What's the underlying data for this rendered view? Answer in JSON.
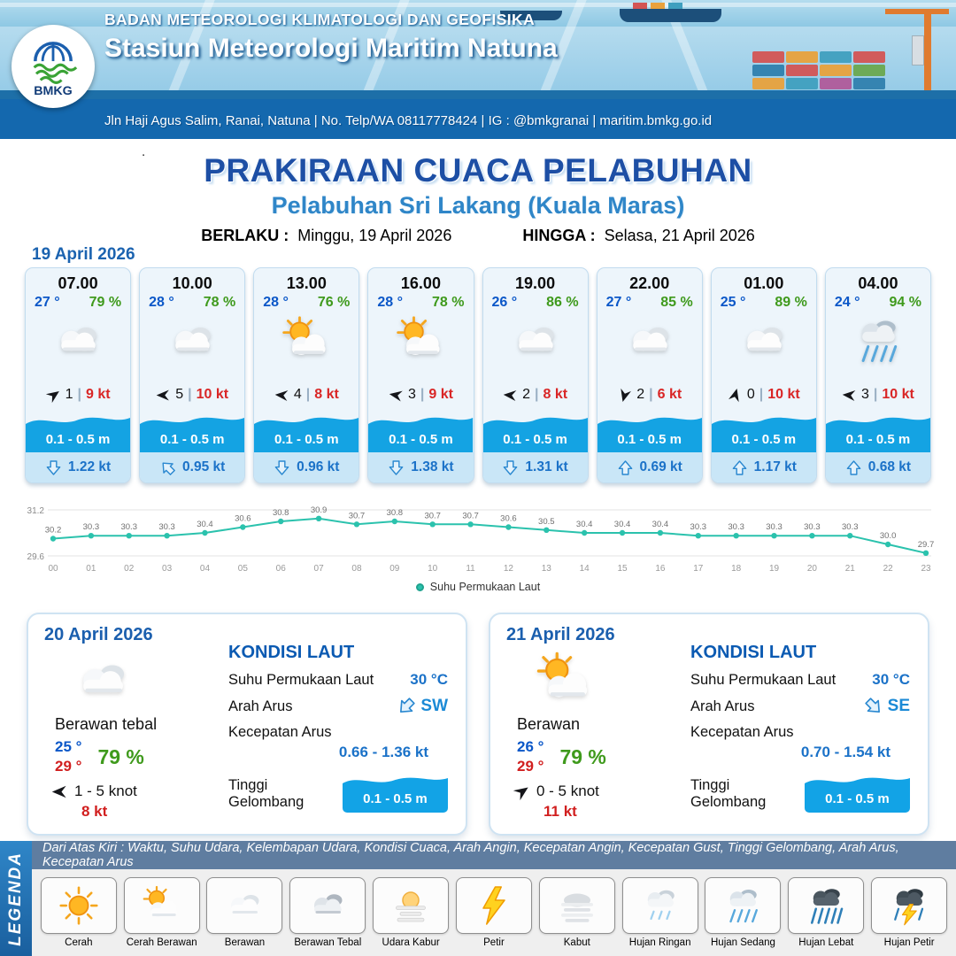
{
  "header": {
    "org": "BADAN METEOROLOGI KLIMATOLOGI DAN GEOFISIKA",
    "station": "Stasiun Meteorologi Maritim Natuna",
    "contact": "Jln Haji Agus Salim, Ranai, Natuna  | No. Telp/WA 08117778424 | IG : @bmkgranai | maritim.bmkg.go.id",
    "logo_label": "BMKG"
  },
  "title": {
    "main": "PRAKIRAAN CUACA PELABUHAN",
    "sub": "Pelabuhan Sri Lakang (Kuala Maras)",
    "valid_from_label": "BERLAKU :",
    "valid_from": "Minggu, 19 April 2026",
    "valid_to_label": "HINGGA :",
    "valid_to": "Selasa, 21 April 2026"
  },
  "misc": {
    "dot": "."
  },
  "forecast": {
    "date": "19 April 2026",
    "cards": [
      {
        "time": "07.00",
        "temp": "27 °",
        "rh": "79 %",
        "icon": "cloudy",
        "wind_dir_deg": -35,
        "wind_speed": "1",
        "gust": "9 kt",
        "wave": "0.1 - 0.5 m",
        "current_dir_deg": 180,
        "current_speed": "1.22 kt"
      },
      {
        "time": "10.00",
        "temp": "28 °",
        "rh": "78 %",
        "icon": "cloudy",
        "wind_dir_deg": 180,
        "wind_speed": "5",
        "gust": "10 kt",
        "wave": "0.1 - 0.5 m",
        "current_dir_deg": 315,
        "current_speed": "0.95 kt"
      },
      {
        "time": "13.00",
        "temp": "28 °",
        "rh": "76 %",
        "icon": "suncloud",
        "wind_dir_deg": 185,
        "wind_speed": "4",
        "gust": "8 kt",
        "wave": "0.1 - 0.5 m",
        "current_dir_deg": 180,
        "current_speed": "0.96 kt"
      },
      {
        "time": "16.00",
        "temp": "28 °",
        "rh": "78 %",
        "icon": "suncloud",
        "wind_dir_deg": 190,
        "wind_speed": "3",
        "gust": "9 kt",
        "wave": "0.1 - 0.5 m",
        "current_dir_deg": 180,
        "current_speed": "1.38 kt"
      },
      {
        "time": "19.00",
        "temp": "26 °",
        "rh": "86 %",
        "icon": "cloudy",
        "wind_dir_deg": 185,
        "wind_speed": "2",
        "gust": "8 kt",
        "wave": "0.1 - 0.5 m",
        "current_dir_deg": 180,
        "current_speed": "1.31 kt"
      },
      {
        "time": "22.00",
        "temp": "27 °",
        "rh": "85 %",
        "icon": "cloudy",
        "wind_dir_deg": 105,
        "wind_speed": "2",
        "gust": "6 kt",
        "wave": "0.1 - 0.5 m",
        "current_dir_deg": 0,
        "current_speed": "0.69 kt"
      },
      {
        "time": "01.00",
        "temp": "25 °",
        "rh": "89 %",
        "icon": "cloudy",
        "wind_dir_deg": -75,
        "wind_speed": "0",
        "gust": "10 kt",
        "wave": "0.1 - 0.5 m",
        "current_dir_deg": 0,
        "current_speed": "1.17 kt"
      },
      {
        "time": "04.00",
        "temp": "24 °",
        "rh": "94 %",
        "icon": "rain-mid",
        "wind_dir_deg": 185,
        "wind_speed": "3",
        "gust": "10 kt",
        "wave": "0.1 - 0.5 m",
        "current_dir_deg": 0,
        "current_speed": "0.68 kt"
      }
    ]
  },
  "chart_data": {
    "type": "line",
    "x": [
      "00",
      "01",
      "02",
      "03",
      "04",
      "05",
      "06",
      "07",
      "08",
      "09",
      "10",
      "11",
      "12",
      "13",
      "14",
      "15",
      "16",
      "17",
      "18",
      "19",
      "20",
      "21",
      "22",
      "23"
    ],
    "series": [
      {
        "name": "Suhu Permukaan Laut",
        "values": [
          30.2,
          30.3,
          30.3,
          30.3,
          30.4,
          30.6,
          30.8,
          30.9,
          30.7,
          30.8,
          30.7,
          30.7,
          30.6,
          30.5,
          30.4,
          30.4,
          30.4,
          30.3,
          30.3,
          30.3,
          30.3,
          30.3,
          30.0,
          29.7
        ]
      }
    ],
    "ylim": [
      29.6,
      31.2
    ],
    "yticks": [
      29.6,
      31.2
    ],
    "line_color": "#2bc2ad",
    "legend_position": "bottom",
    "grid": true
  },
  "sea_labels": {
    "kondisi": "KONDISI LAUT",
    "sst": "Suhu Permukaan Laut",
    "arah": "Arah Arus",
    "kecepatan": "Kecepatan Arus",
    "gelombang": "Tinggi Gelombang"
  },
  "days": [
    {
      "date": "20 April 2026",
      "icon": "cloudy",
      "condition": "Berawan tebal",
      "temp_night": "25 °",
      "temp_day": "29 °",
      "rh": "79 %",
      "wind_dir_deg": 180,
      "wind_range": "1  - 5 knot",
      "gust": "8 kt",
      "sst": "30 °C",
      "current_dir": "SW",
      "current_dir_deg": 225,
      "current_speed": "0.66 - 1.36 kt",
      "wave": "0.1 - 0.5 m"
    },
    {
      "date": "21 April 2026",
      "icon": "suncloud",
      "condition": "Berawan",
      "temp_night": "26 °",
      "temp_day": "29 °",
      "rh": "79 %",
      "wind_dir_deg": -35,
      "wind_range": "0  - 5 knot",
      "gust": "11 kt",
      "sst": "30 °C",
      "current_dir": "SE",
      "current_dir_deg": 135,
      "current_speed": "0.70 - 1.54 kt",
      "wave": "0.1 - 0.5 m"
    }
  ],
  "legend": {
    "title": "LEGENDA",
    "note": "Dari Atas Kiri : Waktu, Suhu Udara, Kelembapan Udara, Kondisi Cuaca, Arah Angin, Kecepatan Angin, Kecepatan Gust, Tinggi Gelombang, Arah Arus, Kecepatan Arus",
    "items": [
      {
        "label": "Cerah",
        "icon": "sun"
      },
      {
        "label": "Cerah Berawan",
        "icon": "suncloud"
      },
      {
        "label": "Berawan",
        "icon": "cloudy"
      },
      {
        "label": "Berawan Tebal",
        "icon": "cloudy-dark"
      },
      {
        "label": "Udara Kabur",
        "icon": "haze"
      },
      {
        "label": "Petir",
        "icon": "thunder"
      },
      {
        "label": "Kabut",
        "icon": "fog"
      },
      {
        "label": "Hujan Ringan",
        "icon": "rain-light"
      },
      {
        "label": "Hujan Sedang",
        "icon": "rain-mid"
      },
      {
        "label": "Hujan Lebat",
        "icon": "rain-heavy"
      },
      {
        "label": "Hujan Petir",
        "icon": "storm"
      }
    ]
  },
  "colors": {
    "header_blue": "#1468ae",
    "title_navy": "#1d4fa5",
    "subtitle_blue": "#2f86c8",
    "temp_blue": "#0b57c8",
    "humidity_green": "#3f9a1c",
    "gust_red": "#d92626",
    "wave_blue": "#14a3e3",
    "current_blue": "#1b72c8",
    "chart_teal": "#2bc2ad"
  }
}
